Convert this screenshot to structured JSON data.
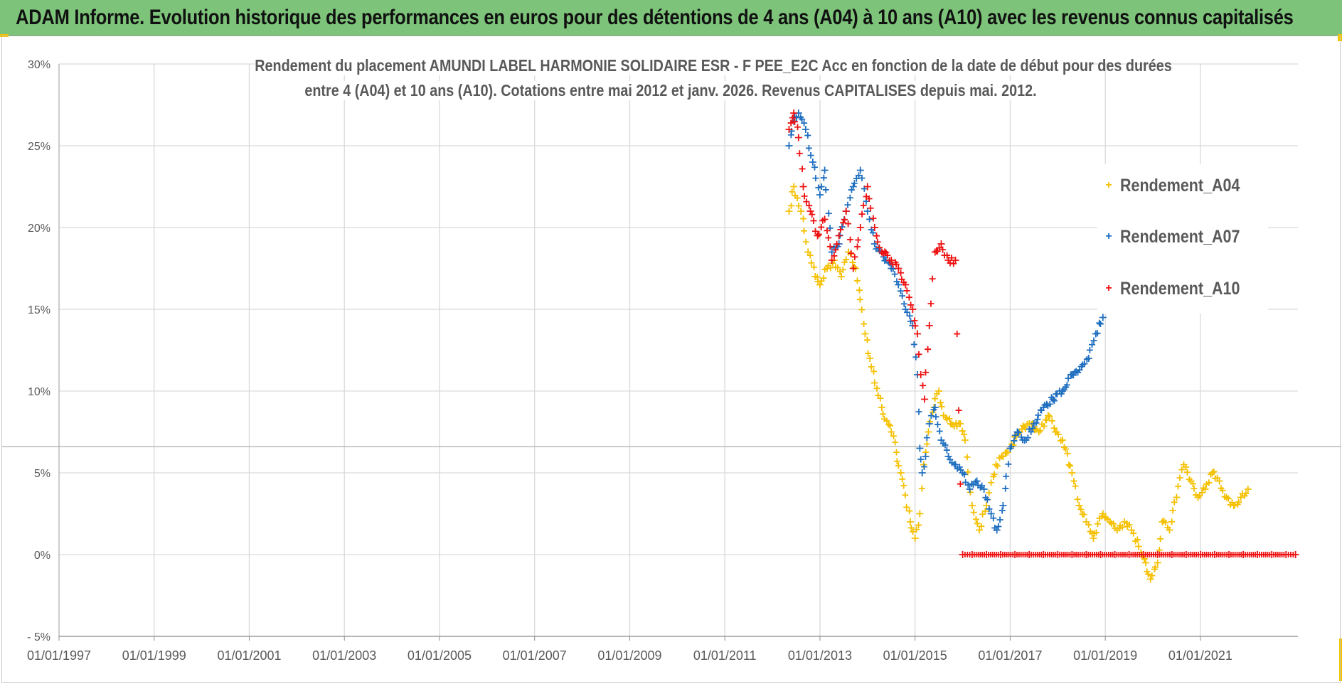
{
  "banner": {
    "title": "ADAM Informe. Evolution historique des performances en euros pour des détentions de 4 ans (A04) à 10 ans (A10) avec les revenus connus capitalisés"
  },
  "colors": {
    "banner_bg": "#7dc47a",
    "a04": "#f5c000",
    "a07": "#1f6fc0",
    "a10": "#ee1111",
    "grid": "#d9d9d9",
    "axis_text": "#595959"
  },
  "chart_data": {
    "type": "scatter",
    "title_line1": "Rendement du placement AMUNDI LABEL HARMONIE SOLIDAIRE ESR - F PEE_E2C Acc en fonction de la date de début pour des durées",
    "title_line2": "entre 4 (A04) et 10 ans (A10). Cotations entre mai 2012 et janv. 2026. Revenus CAPITALISES depuis mai. 2012.",
    "xlabel": "",
    "ylabel": "",
    "xlim": [
      1997.0,
      2023.05
    ],
    "ylim": [
      -5,
      30
    ],
    "x_ticks": [
      1997,
      1999,
      2001,
      2003,
      2005,
      2007,
      2009,
      2011,
      2013,
      2015,
      2017,
      2019,
      2021
    ],
    "x_tick_labels": [
      "01/01/1997",
      "01/01/1999",
      "01/01/2001",
      "01/01/2003",
      "01/01/2005",
      "01/01/2007",
      "01/01/2009",
      "01/01/2011",
      "01/01/2013",
      "01/01/2015",
      "01/01/2017",
      "01/01/2019",
      "01/01/2021"
    ],
    "y_ticks": [
      -5,
      0,
      5,
      10,
      15,
      20,
      25,
      30
    ],
    "y_tick_labels": [
      "- 5%",
      "0%",
      "5%",
      "10%",
      "15%",
      "20%",
      "25%",
      "30%"
    ],
    "reference_line_y": 6.6,
    "legend_position": "top-right",
    "series": [
      {
        "name": "Rendement_A04",
        "color": "#f5c000",
        "x": [
          2012.35,
          2012.45,
          2012.6,
          2012.75,
          2012.9,
          2013.0,
          2013.15,
          2013.3,
          2013.45,
          2013.6,
          2013.75,
          2013.95,
          2014.05,
          2014.15,
          2014.3,
          2014.5,
          2014.7,
          2014.9,
          2015.0,
          2015.1,
          2015.18,
          2015.28,
          2015.4,
          2015.5,
          2015.6,
          2015.75,
          2015.95,
          2016.05,
          2016.2,
          2016.35,
          2016.5,
          2016.7,
          2016.85,
          2017.0,
          2017.2,
          2017.4,
          2017.6,
          2017.8,
          2017.95,
          2018.1,
          2018.3,
          2018.45,
          2018.6,
          2018.75,
          2018.95,
          2019.1,
          2019.25,
          2019.4,
          2019.55,
          2019.7,
          2019.85,
          2019.95,
          2020.1,
          2020.2,
          2020.35,
          2020.5,
          2020.65,
          2020.8,
          2020.95,
          2021.1,
          2021.25,
          2021.4,
          2021.55,
          2021.7,
          2021.85,
          2022.0
        ],
        "values": [
          21.0,
          22.5,
          21.0,
          18.5,
          17.0,
          16.5,
          17.5,
          18.0,
          17.0,
          18.5,
          17.5,
          13.5,
          12.0,
          10.5,
          9.0,
          7.5,
          5.0,
          2.0,
          1.0,
          2.5,
          5.5,
          7.5,
          9.0,
          10.0,
          8.5,
          8.0,
          8.0,
          7.0,
          3.0,
          1.5,
          3.0,
          5.5,
          6.0,
          6.5,
          7.5,
          8.0,
          7.5,
          8.5,
          7.5,
          7.0,
          5.0,
          3.0,
          2.0,
          1.0,
          2.5,
          2.0,
          1.5,
          2.0,
          1.5,
          0.5,
          -0.5,
          -1.5,
          -0.5,
          2.0,
          1.5,
          3.5,
          5.5,
          4.5,
          3.5,
          4.0,
          5.0,
          4.5,
          3.5,
          3.0,
          3.5,
          4.0
        ]
      },
      {
        "name": "Rendement_A07",
        "color": "#1f6fc0",
        "x": [
          2012.35,
          2012.45,
          2012.55,
          2012.7,
          2012.85,
          2013.0,
          2013.1,
          2013.25,
          2013.4,
          2013.55,
          2013.7,
          2013.85,
          2014.0,
          2014.15,
          2014.3,
          2014.5,
          2014.65,
          2014.8,
          2014.95,
          2015.05,
          2015.1,
          2015.15,
          2015.22,
          2015.3,
          2015.42,
          2015.55,
          2015.7,
          2015.85,
          2016.0,
          2016.15,
          2016.3,
          2016.45,
          2016.6,
          2016.72,
          2016.85,
          2017.0,
          2017.15,
          2017.3,
          2017.5,
          2017.7,
          2017.9,
          2018.1,
          2018.3,
          2018.5,
          2018.65,
          2018.8,
          2018.95
        ],
        "values": [
          25.0,
          26.5,
          27.0,
          26.0,
          24.0,
          22.0,
          23.5,
          18.5,
          19.0,
          21.0,
          22.5,
          23.5,
          21.0,
          19.0,
          18.5,
          17.5,
          16.5,
          15.0,
          14.0,
          11.0,
          6.5,
          5.0,
          6.0,
          8.0,
          9.0,
          7.0,
          6.0,
          5.5,
          5.0,
          4.0,
          4.5,
          4.0,
          2.5,
          1.5,
          3.0,
          6.5,
          7.5,
          7.0,
          8.0,
          9.0,
          9.5,
          10.0,
          11.0,
          11.5,
          12.0,
          13.5,
          14.5
        ]
      },
      {
        "name": "Rendement_A10",
        "color": "#ee1111",
        "x": [
          2012.35,
          2012.45,
          2012.55,
          2012.65,
          2012.8,
          2012.95,
          2013.1,
          2013.25,
          2013.4,
          2013.55,
          2013.7,
          2013.85,
          2014.0,
          2014.15,
          2014.3,
          2014.5,
          2014.65,
          2014.8,
          2014.95,
          2015.05,
          2015.12,
          2015.2,
          2015.3,
          2015.42,
          2015.55,
          2015.7,
          2015.85,
          2016.0,
          2016.2,
          2016.5,
          2016.8,
          2017.1,
          2017.4,
          2017.7,
          2018.0,
          2018.3,
          2018.6,
          2018.9,
          2019.2,
          2019.5,
          2019.8,
          2020.1,
          2020.4,
          2020.7,
          2021.0,
          2021.3,
          2021.6,
          2021.9,
          2022.2,
          2022.5,
          2022.8,
          2023.0
        ],
        "values": [
          26.0,
          27.0,
          25.5,
          22.5,
          21.0,
          19.5,
          20.5,
          18.0,
          19.5,
          21.0,
          17.5,
          20.0,
          22.5,
          20.0,
          18.5,
          18.0,
          17.5,
          16.5,
          15.0,
          13.5,
          11.0,
          9.5,
          14.0,
          18.5,
          19.0,
          18.0,
          18.0,
          0.0,
          0.0,
          0.0,
          0.0,
          0.0,
          0.0,
          0.0,
          0.0,
          0.0,
          0.0,
          0.0,
          0.0,
          0.0,
          0.0,
          0.0,
          0.0,
          0.0,
          0.0,
          0.0,
          0.0,
          0.0,
          0.0,
          0.0,
          0.0,
          0.0
        ]
      }
    ]
  }
}
